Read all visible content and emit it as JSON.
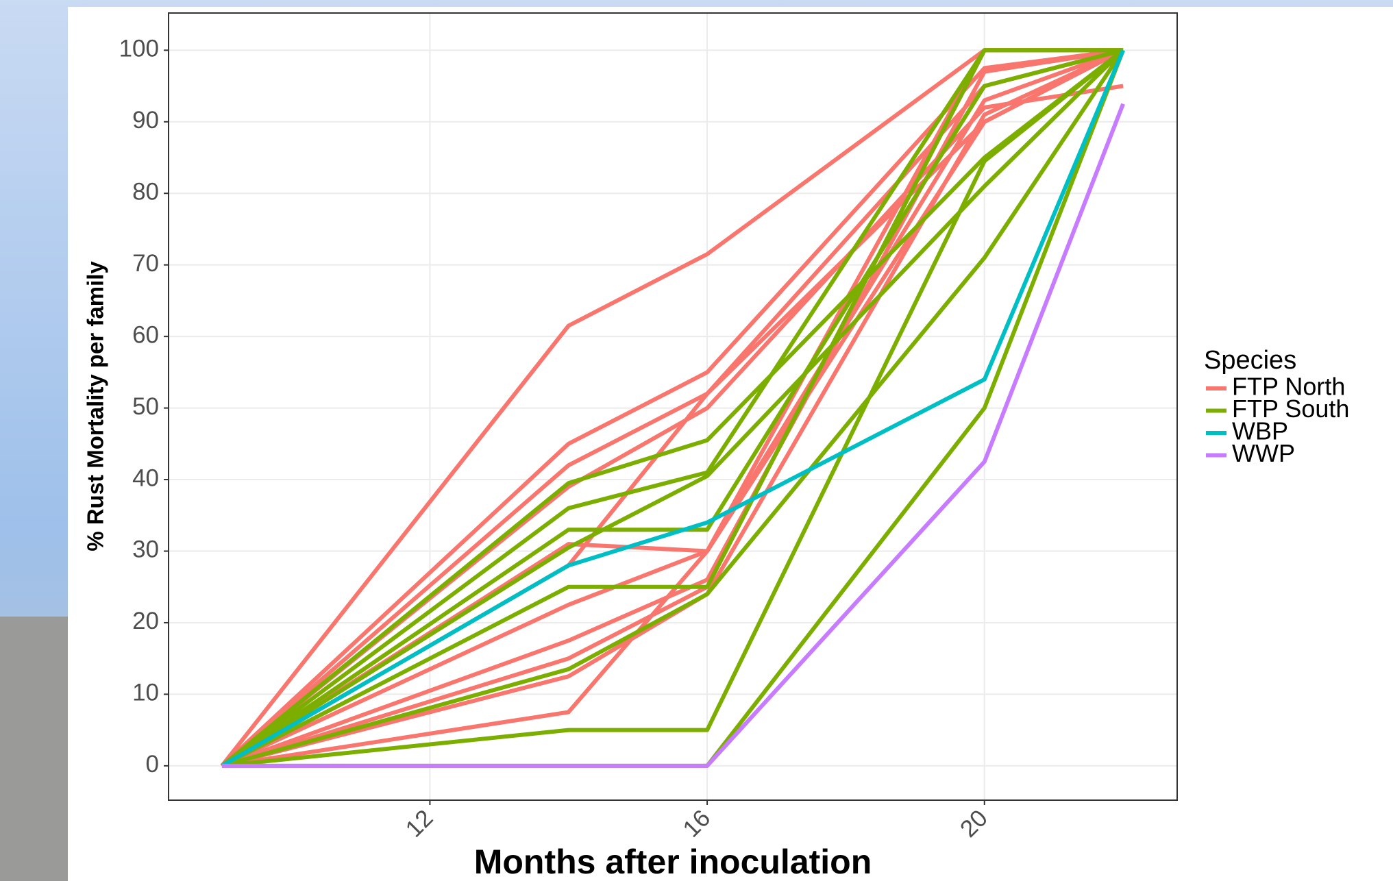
{
  "chart_data": {
    "type": "line",
    "x_label": "Months after inoculation",
    "y_label": "% Rust Mortality per family",
    "legend_title": "Species",
    "legend_position": "right",
    "grid": true,
    "x": [
      9,
      14,
      16,
      20,
      22
    ],
    "xlim": [
      8.23,
      22.78
    ],
    "xticks": [
      12,
      16,
      20
    ],
    "ylim": [
      -4.8,
      105.2
    ],
    "yticks": [
      0,
      10,
      20,
      30,
      40,
      50,
      60,
      70,
      80,
      90,
      100
    ],
    "series": [
      {
        "name": "FTP North",
        "color": "#f8766d",
        "lines": [
          [
            0,
            61.5,
            71.5,
            100,
            100
          ],
          [
            0,
            45,
            55,
            97.5,
            100
          ],
          [
            0,
            42,
            52,
            95,
            100
          ],
          [
            0,
            39,
            50,
            92,
            95
          ],
          [
            0,
            31,
            30,
            90,
            100
          ],
          [
            0,
            22.5,
            30,
            93,
            100
          ],
          [
            0,
            17.5,
            26,
            97,
            100
          ],
          [
            0,
            15,
            25,
            100,
            100
          ],
          [
            0,
            12.5,
            24,
            91,
            100
          ],
          [
            0,
            7.5,
            30,
            100,
            100
          ],
          [
            0,
            28,
            52,
            90,
            100
          ]
        ]
      },
      {
        "name": "FTP South",
        "color": "#7cae00",
        "lines": [
          [
            0,
            39.5,
            45.5,
            85,
            100
          ],
          [
            0,
            36,
            41,
            100,
            100
          ],
          [
            0,
            33,
            33,
            95,
            100
          ],
          [
            0,
            30.5,
            40.5,
            81,
            100
          ],
          [
            0,
            25,
            25,
            100,
            100
          ],
          [
            0,
            13.5,
            24,
            71,
            100
          ],
          [
            0,
            5,
            5,
            84.5,
            100
          ],
          [
            0,
            0,
            0,
            50,
            100
          ]
        ]
      },
      {
        "name": "WBP",
        "color": "#00bfc4",
        "lines": [
          [
            0,
            28,
            34,
            54,
            100
          ]
        ]
      },
      {
        "name": "WWP",
        "color": "#c77cff",
        "lines": [
          [
            0,
            0,
            0,
            42.5,
            92.5
          ]
        ]
      }
    ]
  }
}
